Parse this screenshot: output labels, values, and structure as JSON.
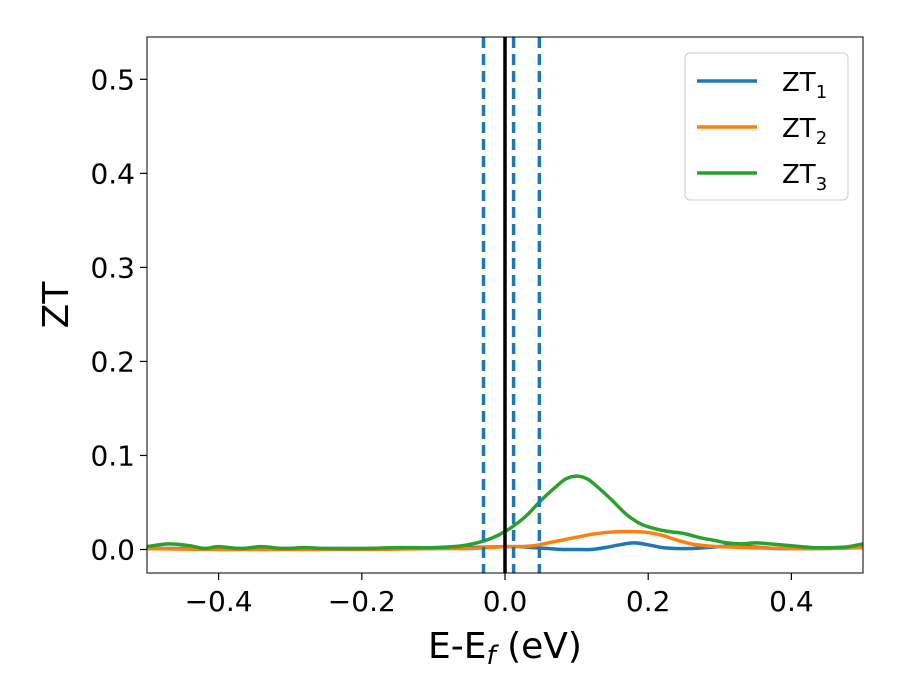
{
  "chart_data": {
    "type": "line",
    "title": "",
    "xlabel": {
      "main": "E-E",
      "sub": "f",
      "suffix": " (eV)"
    },
    "ylabel": "ZT",
    "xlim": [
      -0.5,
      0.5
    ],
    "ylim": [
      -0.025,
      0.545
    ],
    "x_ticks": [
      -0.4,
      -0.2,
      0.0,
      0.2,
      0.4
    ],
    "x_tick_labels": [
      "−0.4",
      "−0.2",
      "0.0",
      "0.2",
      "0.4"
    ],
    "y_ticks": [
      0.0,
      0.1,
      0.2,
      0.3,
      0.4,
      0.5
    ],
    "y_tick_labels": [
      "0.0",
      "0.1",
      "0.2",
      "0.3",
      "0.4",
      "0.5"
    ],
    "grid": false,
    "legend_position": "top-right",
    "vertical_lines": [
      {
        "x": -0.03,
        "style": "dashed",
        "color": "#1f77b4"
      },
      {
        "x": 0.0,
        "style": "solid",
        "color": "#000000"
      },
      {
        "x": 0.012,
        "style": "dashed",
        "color": "#1f77b4"
      },
      {
        "x": 0.048,
        "style": "dashed",
        "color": "#1f77b4"
      }
    ],
    "series": [
      {
        "name": "ZT",
        "sub": "1",
        "color": "#1f77b4",
        "points": [
          [
            -0.5,
            0.001
          ],
          [
            -0.4,
            0.001
          ],
          [
            -0.3,
            0.001
          ],
          [
            -0.2,
            0.001
          ],
          [
            -0.1,
            0.001
          ],
          [
            -0.05,
            0.002
          ],
          [
            0.0,
            0.003
          ],
          [
            0.02,
            0.003
          ],
          [
            0.04,
            0.002
          ],
          [
            0.06,
            0.001
          ],
          [
            0.08,
            0.0
          ],
          [
            0.1,
            0.0
          ],
          [
            0.12,
            0.0
          ],
          [
            0.14,
            0.002
          ],
          [
            0.16,
            0.005
          ],
          [
            0.18,
            0.007
          ],
          [
            0.2,
            0.005
          ],
          [
            0.22,
            0.002
          ],
          [
            0.24,
            0.001
          ],
          [
            0.26,
            0.001
          ],
          [
            0.28,
            0.002
          ],
          [
            0.3,
            0.003
          ],
          [
            0.32,
            0.004
          ],
          [
            0.34,
            0.003
          ],
          [
            0.36,
            0.002
          ],
          [
            0.38,
            0.001
          ],
          [
            0.4,
            0.001
          ],
          [
            0.44,
            0.001
          ],
          [
            0.5,
            0.002
          ]
        ]
      },
      {
        "name": "ZT",
        "sub": "2",
        "color": "#ff7f0e",
        "points": [
          [
            -0.5,
            0.001
          ],
          [
            -0.4,
            0.0
          ],
          [
            -0.3,
            0.0
          ],
          [
            -0.2,
            0.0
          ],
          [
            -0.1,
            0.001
          ],
          [
            -0.05,
            0.001
          ],
          [
            0.0,
            0.003
          ],
          [
            0.02,
            0.003
          ],
          [
            0.04,
            0.004
          ],
          [
            0.06,
            0.007
          ],
          [
            0.08,
            0.01
          ],
          [
            0.1,
            0.013
          ],
          [
            0.12,
            0.016
          ],
          [
            0.14,
            0.018
          ],
          [
            0.16,
            0.019
          ],
          [
            0.18,
            0.019
          ],
          [
            0.2,
            0.018
          ],
          [
            0.22,
            0.015
          ],
          [
            0.24,
            0.01
          ],
          [
            0.26,
            0.006
          ],
          [
            0.28,
            0.004
          ],
          [
            0.3,
            0.003
          ],
          [
            0.34,
            0.002
          ],
          [
            0.4,
            0.001
          ],
          [
            0.45,
            0.001
          ],
          [
            0.5,
            0.002
          ]
        ]
      },
      {
        "name": "ZT",
        "sub": "3",
        "color": "#2ca02c",
        "points": [
          [
            -0.5,
            0.003
          ],
          [
            -0.47,
            0.006
          ],
          [
            -0.44,
            0.004
          ],
          [
            -0.42,
            0.001
          ],
          [
            -0.4,
            0.003
          ],
          [
            -0.37,
            0.001
          ],
          [
            -0.34,
            0.003
          ],
          [
            -0.31,
            0.001
          ],
          [
            -0.28,
            0.002
          ],
          [
            -0.25,
            0.001
          ],
          [
            -0.2,
            0.001
          ],
          [
            -0.15,
            0.002
          ],
          [
            -0.1,
            0.002
          ],
          [
            -0.06,
            0.004
          ],
          [
            -0.03,
            0.009
          ],
          [
            -0.01,
            0.015
          ],
          [
            0.01,
            0.024
          ],
          [
            0.03,
            0.036
          ],
          [
            0.05,
            0.052
          ],
          [
            0.07,
            0.066
          ],
          [
            0.085,
            0.075
          ],
          [
            0.1,
            0.078
          ],
          [
            0.115,
            0.075
          ],
          [
            0.13,
            0.066
          ],
          [
            0.15,
            0.052
          ],
          [
            0.17,
            0.037
          ],
          [
            0.19,
            0.027
          ],
          [
            0.21,
            0.022
          ],
          [
            0.23,
            0.019
          ],
          [
            0.25,
            0.017
          ],
          [
            0.27,
            0.013
          ],
          [
            0.29,
            0.01
          ],
          [
            0.31,
            0.007
          ],
          [
            0.33,
            0.006
          ],
          [
            0.35,
            0.007
          ],
          [
            0.37,
            0.006
          ],
          [
            0.4,
            0.004
          ],
          [
            0.43,
            0.002
          ],
          [
            0.46,
            0.002
          ],
          [
            0.48,
            0.003
          ],
          [
            0.5,
            0.006
          ]
        ]
      }
    ]
  }
}
